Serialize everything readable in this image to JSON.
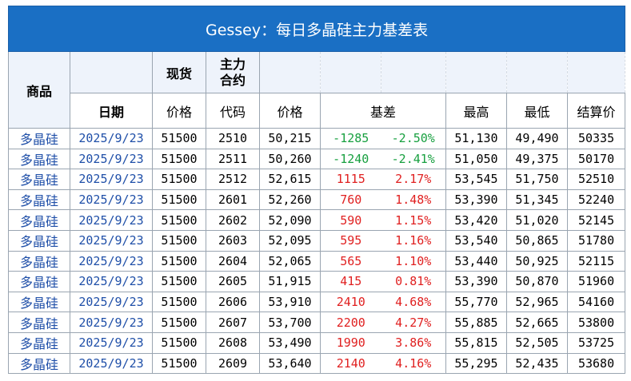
{
  "title": "Gessey：每日多晶硅主力基差表",
  "headers": {
    "product": "商品",
    "spot": "现货",
    "contract_l1": "主力",
    "contract_l2": "合约",
    "date": "日期",
    "spot_price": "价格",
    "code": "代码",
    "price": "价格",
    "basis": "基差",
    "high": "最高",
    "low": "最低",
    "settle": "结算价"
  },
  "rows": [
    {
      "product": "多晶硅",
      "date": "2025/9/23",
      "spot": "51500",
      "code": "2510",
      "price": "50,215",
      "basis": "-1285",
      "basis_pct": "-2.50%",
      "high": "51,130",
      "low": "49,490",
      "settle": "50335",
      "sign": "neg"
    },
    {
      "product": "多晶硅",
      "date": "2025/9/23",
      "spot": "51500",
      "code": "2511",
      "price": "50,260",
      "basis": "-1240",
      "basis_pct": "-2.41%",
      "high": "51,050",
      "low": "49,375",
      "settle": "50170",
      "sign": "neg"
    },
    {
      "product": "多晶硅",
      "date": "2025/9/23",
      "spot": "51500",
      "code": "2512",
      "price": "52,615",
      "basis": "1115",
      "basis_pct": "2.17%",
      "high": "53,545",
      "low": "51,750",
      "settle": "52510",
      "sign": "pos"
    },
    {
      "product": "多晶硅",
      "date": "2025/9/23",
      "spot": "51500",
      "code": "2601",
      "price": "52,260",
      "basis": "760",
      "basis_pct": "1.48%",
      "high": "53,390",
      "low": "51,345",
      "settle": "52240",
      "sign": "pos"
    },
    {
      "product": "多晶硅",
      "date": "2025/9/23",
      "spot": "51500",
      "code": "2602",
      "price": "52,090",
      "basis": "590",
      "basis_pct": "1.15%",
      "high": "53,420",
      "low": "51,020",
      "settle": "52145",
      "sign": "pos"
    },
    {
      "product": "多晶硅",
      "date": "2025/9/23",
      "spot": "51500",
      "code": "2603",
      "price": "52,095",
      "basis": "595",
      "basis_pct": "1.16%",
      "high": "53,540",
      "low": "50,865",
      "settle": "51780",
      "sign": "pos"
    },
    {
      "product": "多晶硅",
      "date": "2025/9/23",
      "spot": "51500",
      "code": "2604",
      "price": "52,065",
      "basis": "565",
      "basis_pct": "1.10%",
      "high": "53,440",
      "low": "50,925",
      "settle": "52115",
      "sign": "pos"
    },
    {
      "product": "多晶硅",
      "date": "2025/9/23",
      "spot": "51500",
      "code": "2605",
      "price": "51,915",
      "basis": "415",
      "basis_pct": "0.81%",
      "high": "53,390",
      "low": "50,870",
      "settle": "51960",
      "sign": "pos"
    },
    {
      "product": "多晶硅",
      "date": "2025/9/23",
      "spot": "51500",
      "code": "2606",
      "price": "53,910",
      "basis": "2410",
      "basis_pct": "4.68%",
      "high": "55,770",
      "low": "52,965",
      "settle": "54160",
      "sign": "pos"
    },
    {
      "product": "多晶硅",
      "date": "2025/9/23",
      "spot": "51500",
      "code": "2607",
      "price": "53,700",
      "basis": "2200",
      "basis_pct": "4.27%",
      "high": "55,885",
      "low": "52,665",
      "settle": "53800",
      "sign": "pos"
    },
    {
      "product": "多晶硅",
      "date": "2025/9/23",
      "spot": "51500",
      "code": "2608",
      "price": "53,490",
      "basis": "1990",
      "basis_pct": "3.86%",
      "high": "55,815",
      "low": "52,505",
      "settle": "53725",
      "sign": "pos"
    },
    {
      "product": "多晶硅",
      "date": "2025/9/23",
      "spot": "51500",
      "code": "2609",
      "price": "53,640",
      "basis": "2140",
      "basis_pct": "4.16%",
      "high": "55,295",
      "low": "52,435",
      "settle": "53680",
      "sign": "pos"
    }
  ],
  "colors": {
    "title_bg": "#1a6fc4",
    "header_bg": "#eef3fb",
    "positive": "#e02020",
    "negative": "#18a040",
    "link_blue": "#1f4fa8"
  }
}
